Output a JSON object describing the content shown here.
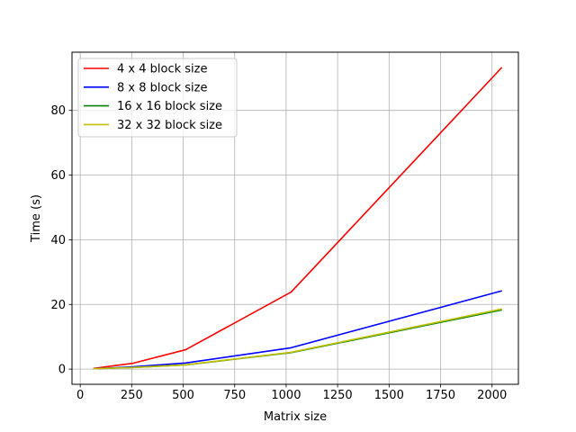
{
  "chart_data": {
    "type": "line",
    "title": "",
    "xlabel": "Matrix size",
    "ylabel": "Time (s)",
    "xlim": [
      -40,
      2128
    ],
    "ylim": [
      -4.7,
      98.0
    ],
    "xticks": [
      0,
      250,
      500,
      750,
      1000,
      1250,
      1500,
      1750,
      2000
    ],
    "yticks": [
      0,
      20,
      40,
      60,
      80
    ],
    "grid": true,
    "legend_position": "top-left",
    "x": [
      64,
      256,
      512,
      1024,
      2048
    ],
    "series": [
      {
        "name": "4 x 4 block size",
        "color": "#ff0000",
        "values": [
          0.2,
          1.8,
          6.0,
          23.8,
          93.3
        ]
      },
      {
        "name": "8 x 8 block size",
        "color": "#0000ff",
        "values": [
          0.1,
          0.7,
          1.9,
          6.6,
          24.2
        ]
      },
      {
        "name": "16 x 16 block size",
        "color": "#008000",
        "values": [
          0.1,
          0.5,
          1.3,
          5.1,
          18.3
        ]
      },
      {
        "name": "32 x 32 block size",
        "color": "#bfbf00",
        "values": [
          0.1,
          0.5,
          1.3,
          5.2,
          18.6
        ]
      }
    ]
  }
}
